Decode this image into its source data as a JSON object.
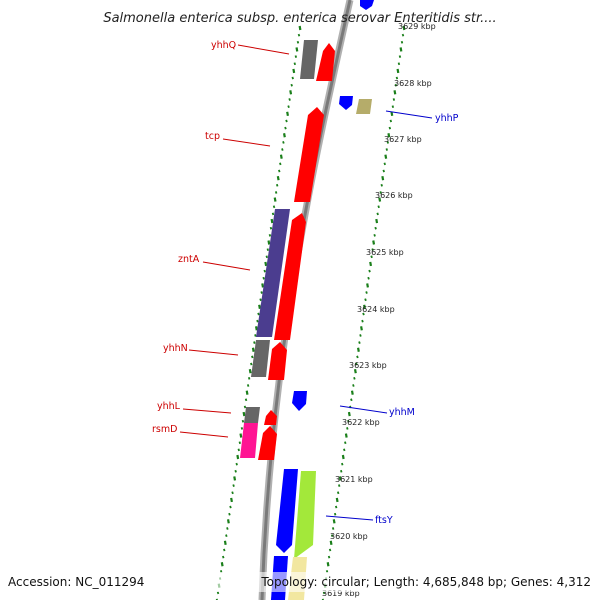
{
  "title": "Salmonella enterica subsp. enterica serovar Enteritidis str....",
  "footer": {
    "accession": "Accession: NC_011294",
    "topology": "Topology: circular; Length: 4,685,848 bp; Genes: 4,312"
  },
  "colors": {
    "tick": "#1a7f1a",
    "backbone": "#8f8f8f",
    "left_label": "#cc0000",
    "right_label": "#0000cc"
  },
  "ticks": [
    {
      "label": "3629 kbp"
    },
    {
      "label": "3628 kbp"
    },
    {
      "label": "3627 kbp"
    },
    {
      "label": "3626 kbp"
    },
    {
      "label": "3625 kbp"
    },
    {
      "label": "3624 kbp"
    },
    {
      "label": "3623 kbp"
    },
    {
      "label": "3622 kbp"
    },
    {
      "label": "3621 kbp"
    },
    {
      "label": "3620 kbp"
    },
    {
      "label": "3619 kbp"
    }
  ],
  "genes_left": [
    {
      "label": "yhhQ"
    },
    {
      "label": "tcp"
    },
    {
      "label": "zntA"
    },
    {
      "label": "yhhN"
    },
    {
      "label": "yhhL"
    },
    {
      "label": "rsmD"
    }
  ],
  "genes_right": [
    {
      "label": "yhhP"
    },
    {
      "label": "yhhM"
    },
    {
      "label": "ftsY"
    }
  ]
}
